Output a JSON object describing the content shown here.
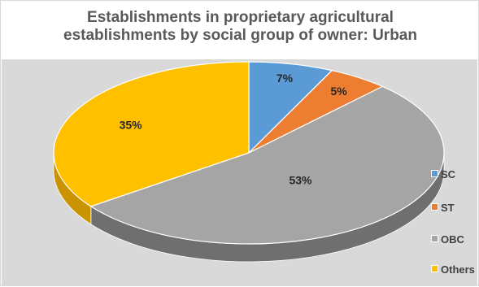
{
  "chart_data": {
    "type": "pie",
    "title_lines": [
      "Establishments in proprietary agricultural",
      "establishments by social group of owner: Urban"
    ],
    "categories": [
      "SC",
      "ST",
      "OBC",
      "Others"
    ],
    "values": [
      7,
      5,
      53,
      35
    ],
    "labels": [
      "7%",
      "5%",
      "53%",
      "35%"
    ],
    "colors": [
      "#5b9bd5",
      "#ed7d31",
      "#a5a5a5",
      "#ffc000"
    ],
    "side_colors": [
      "#3d6e9b",
      "#b05a1f",
      "#6f6f6f",
      "#c99400"
    ],
    "legend_position": "right",
    "plot_background": "#d9d9d9",
    "style": "3d-pie"
  }
}
